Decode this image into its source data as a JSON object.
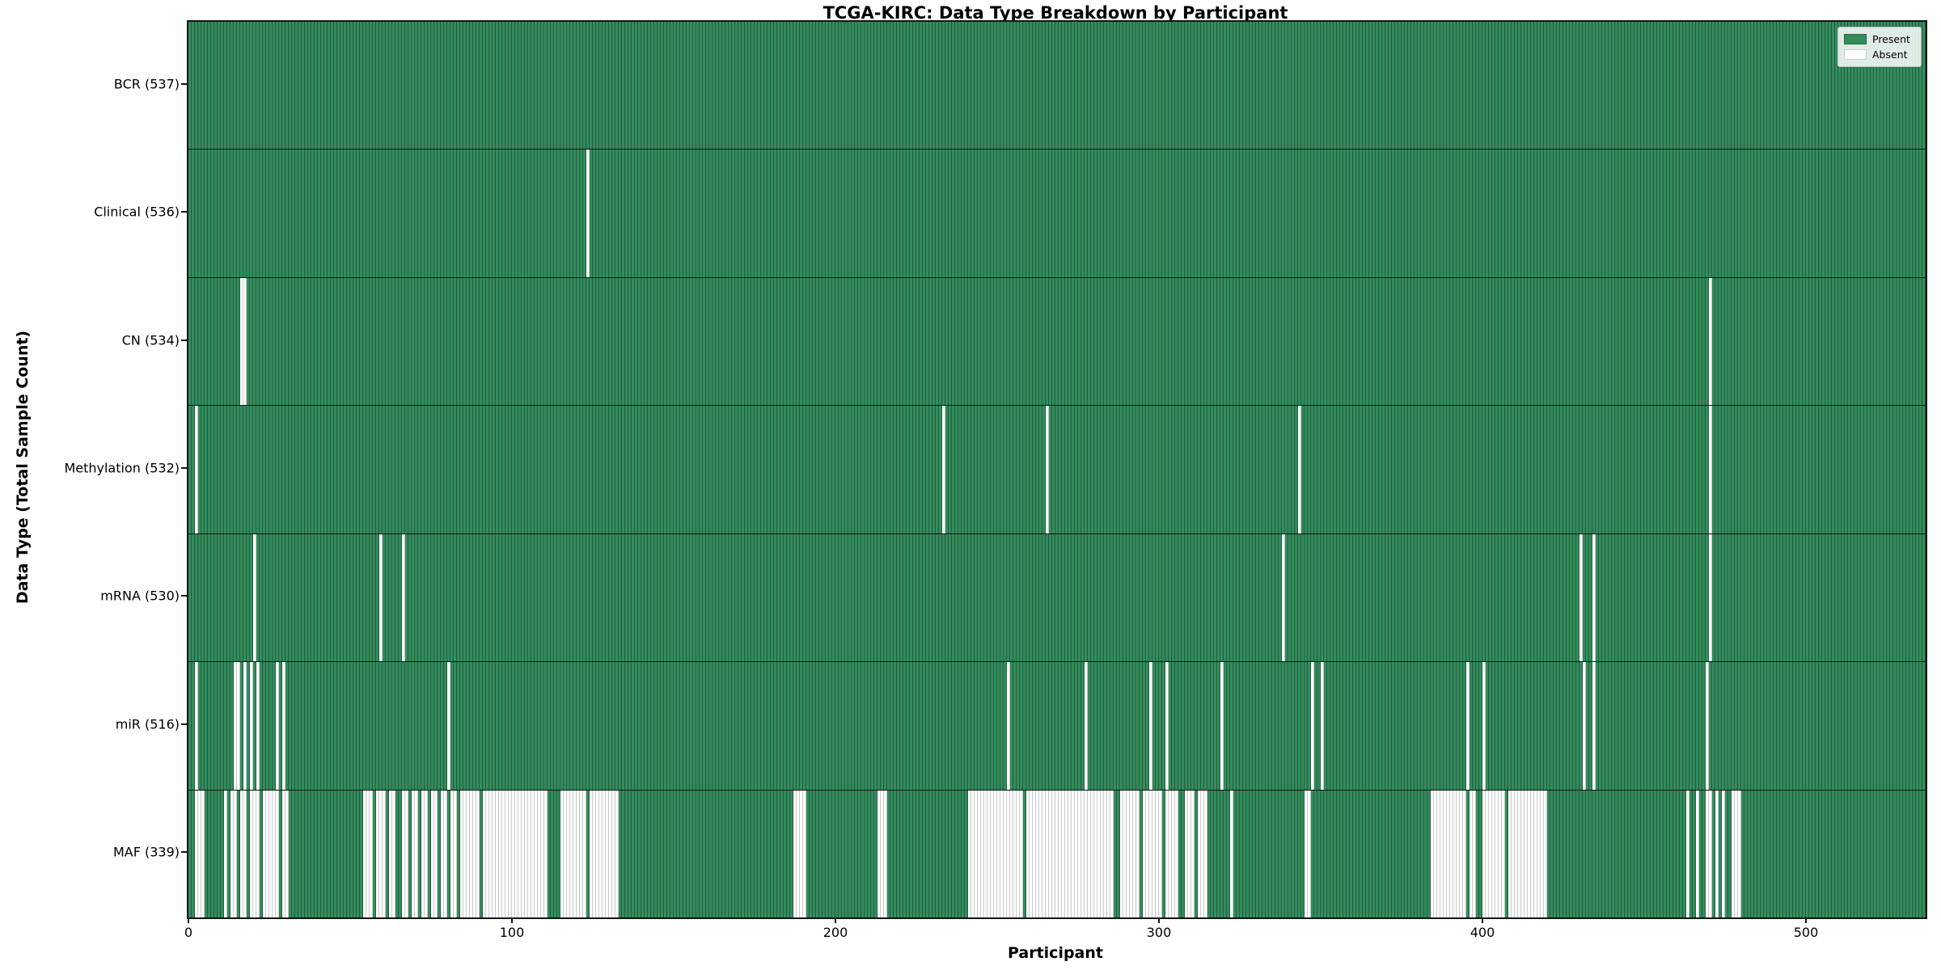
{
  "title": "TCGA-KIRC: Data Type Breakdown by Participant",
  "legend": {
    "present_label": "Present",
    "absent_label": "Absent"
  },
  "axes": {
    "x_label": "Participant",
    "y_label": "Data Type (Total Sample Count)",
    "x_ticks": [
      0,
      100,
      200,
      300,
      400,
      500
    ]
  },
  "colors": {
    "present": "#348c5c",
    "present_edge": "#1f5e3c",
    "absent": "#ffffff",
    "absent_edge": "#c9c9c9",
    "axis": "#141414"
  },
  "chart_data": {
    "type": "heatmap",
    "value_encoding": {
      "present": "green cell",
      "absent": "white cell"
    },
    "n_participants": 537,
    "x_range": [
      0,
      536
    ],
    "legend_position": "upper right",
    "rows": [
      {
        "label": "BCR (537)",
        "data_type": "BCR",
        "count": 537,
        "absent_ranges": []
      },
      {
        "label": "Clinical (536)",
        "data_type": "Clinical",
        "count": 536,
        "absent_ranges": [
          [
            123,
            123
          ]
        ]
      },
      {
        "label": "CN (534)",
        "data_type": "CN",
        "count": 534,
        "absent_ranges": [
          [
            16,
            17
          ],
          [
            470,
            470
          ]
        ]
      },
      {
        "label": "Methylation (532)",
        "data_type": "Methylation",
        "count": 532,
        "absent_ranges": [
          [
            2,
            2
          ],
          [
            233,
            233
          ],
          [
            265,
            265
          ],
          [
            343,
            343
          ],
          [
            470,
            470
          ]
        ]
      },
      {
        "label": "mRNA (530)",
        "data_type": "mRNA",
        "count": 530,
        "absent_ranges": [
          [
            20,
            20
          ],
          [
            59,
            59
          ],
          [
            66,
            66
          ],
          [
            338,
            338
          ],
          [
            430,
            430
          ],
          [
            434,
            434
          ],
          [
            470,
            470
          ]
        ]
      },
      {
        "label": "miR (516)",
        "data_type": "miR",
        "count": 516,
        "absent_ranges": [
          [
            2,
            2
          ],
          [
            14,
            15
          ],
          [
            17,
            17
          ],
          [
            19,
            19
          ],
          [
            21,
            21
          ],
          [
            27,
            27
          ],
          [
            29,
            29
          ],
          [
            80,
            80
          ],
          [
            253,
            253
          ],
          [
            277,
            277
          ],
          [
            297,
            297
          ],
          [
            302,
            302
          ],
          [
            319,
            319
          ],
          [
            347,
            347
          ],
          [
            350,
            350
          ],
          [
            395,
            395
          ],
          [
            400,
            400
          ],
          [
            431,
            431
          ],
          [
            434,
            434
          ],
          [
            469,
            469
          ]
        ]
      },
      {
        "label": "MAF (339)",
        "data_type": "MAF",
        "count": 339,
        "absent_ranges": [
          [
            2,
            4
          ],
          [
            11,
            11
          ],
          [
            13,
            14
          ],
          [
            16,
            17
          ],
          [
            19,
            21
          ],
          [
            23,
            27
          ],
          [
            29,
            30
          ],
          [
            54,
            56
          ],
          [
            58,
            60
          ],
          [
            62,
            63
          ],
          [
            66,
            67
          ],
          [
            69,
            70
          ],
          [
            72,
            73
          ],
          [
            75,
            76
          ],
          [
            78,
            79
          ],
          [
            81,
            82
          ],
          [
            84,
            89
          ],
          [
            91,
            110
          ],
          [
            115,
            122
          ],
          [
            124,
            132
          ],
          [
            187,
            190
          ],
          [
            213,
            215
          ],
          [
            241,
            257
          ],
          [
            259,
            285
          ],
          [
            288,
            293
          ],
          [
            295,
            300
          ],
          [
            302,
            305
          ],
          [
            308,
            310
          ],
          [
            312,
            314
          ],
          [
            322,
            322
          ],
          [
            345,
            346
          ],
          [
            384,
            394
          ],
          [
            396,
            397
          ],
          [
            400,
            406
          ],
          [
            408,
            419
          ],
          [
            463,
            463
          ],
          [
            466,
            466
          ],
          [
            469,
            470
          ],
          [
            472,
            472
          ],
          [
            474,
            474
          ],
          [
            477,
            479
          ]
        ]
      }
    ]
  }
}
